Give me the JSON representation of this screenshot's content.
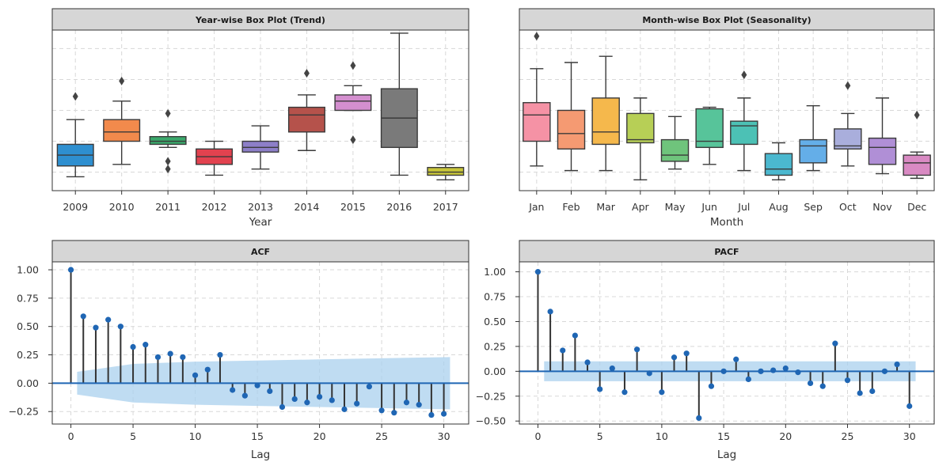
{
  "chart_data": [
    {
      "id": "year_box",
      "type": "box",
      "title": "Year-wise Box Plot (Trend)",
      "xlabel": "Year",
      "ylabel": "",
      "grid": true,
      "y_tick_labels_visible": false,
      "ylim": [
        -2,
        102
      ],
      "categories": [
        "2009",
        "2010",
        "2011",
        "2012",
        "2013",
        "2014",
        "2015",
        "2016",
        "2017"
      ],
      "colors": [
        "#2e8fd0",
        "#f28a4c",
        "#3aa86b",
        "#e2424f",
        "#8d7fc8",
        "#b5524b",
        "#d48fcf",
        "#7a7a7a",
        "#c8c63a"
      ],
      "boxes": [
        {
          "whislo": 7,
          "q1": 14,
          "med": 21,
          "q3": 28,
          "whishi": 44,
          "fliers": [
            59
          ]
        },
        {
          "whislo": 15,
          "q1": 30,
          "med": 36,
          "q3": 44,
          "whishi": 56,
          "fliers": [
            69
          ]
        },
        {
          "whislo": 26,
          "q1": 28,
          "med": 30,
          "q3": 33,
          "whishi": 36,
          "fliers": [
            48,
            17,
            12
          ]
        },
        {
          "whislo": 8,
          "q1": 15,
          "med": 20,
          "q3": 25,
          "whishi": 30,
          "fliers": []
        },
        {
          "whislo": 12,
          "q1": 23,
          "med": 26,
          "q3": 30,
          "whishi": 40,
          "fliers": []
        },
        {
          "whislo": 24,
          "q1": 36,
          "med": 47,
          "q3": 52,
          "whishi": 60,
          "fliers": [
            74
          ]
        },
        {
          "whislo": 50,
          "q1": 50,
          "med": 56,
          "q3": 60,
          "whishi": 66,
          "fliers": [
            79,
            31
          ]
        },
        {
          "whislo": 8,
          "q1": 26,
          "med": 45,
          "q3": 64,
          "whishi": 100,
          "fliers": []
        },
        {
          "whislo": 5,
          "q1": 8,
          "med": 10,
          "q3": 13,
          "whishi": 15,
          "fliers": []
        }
      ]
    },
    {
      "id": "month_box",
      "type": "box",
      "title": "Month-wise Box Plot (Seasonality)",
      "xlabel": "Month",
      "ylabel": "",
      "grid": true,
      "y_tick_labels_visible": false,
      "ylim": [
        -2,
        102
      ],
      "categories": [
        "Jan",
        "Feb",
        "Mar",
        "Apr",
        "May",
        "Jun",
        "Jul",
        "Aug",
        "Sep",
        "Oct",
        "Nov",
        "Dec"
      ],
      "colors": [
        "#f592a5",
        "#f59a72",
        "#f5b84c",
        "#b7cf56",
        "#6fc47c",
        "#57c49a",
        "#4cc1b5",
        "#4bb8cf",
        "#64aee8",
        "#a9aedc",
        "#b08fd6",
        "#d98ac3"
      ],
      "boxes": [
        {
          "whislo": 14,
          "q1": 30,
          "med": 47,
          "q3": 55,
          "whishi": 77,
          "fliers": [
            98
          ]
        },
        {
          "whislo": 11,
          "q1": 25,
          "med": 35,
          "q3": 50,
          "whishi": 81,
          "fliers": []
        },
        {
          "whislo": 11,
          "q1": 28,
          "med": 36,
          "q3": 58,
          "whishi": 85,
          "fliers": []
        },
        {
          "whislo": 5,
          "q1": 29,
          "med": 31,
          "q3": 48,
          "whishi": 58,
          "fliers": []
        },
        {
          "whislo": 12,
          "q1": 17,
          "med": 21,
          "q3": 31,
          "whishi": 46,
          "fliers": []
        },
        {
          "whislo": 15,
          "q1": 26,
          "med": 30,
          "q3": 51,
          "whishi": 52,
          "fliers": []
        },
        {
          "whislo": 11,
          "q1": 28,
          "med": 40,
          "q3": 43,
          "whishi": 58,
          "fliers": [
            73
          ]
        },
        {
          "whislo": 5,
          "q1": 8,
          "med": 12,
          "q3": 22,
          "whishi": 29,
          "fliers": []
        },
        {
          "whislo": 11,
          "q1": 16,
          "med": 27,
          "q3": 31,
          "whishi": 53,
          "fliers": []
        },
        {
          "whislo": 14,
          "q1": 25,
          "med": 27,
          "q3": 38,
          "whishi": 48,
          "fliers": [
            66
          ]
        },
        {
          "whislo": 9,
          "q1": 15,
          "med": 26,
          "q3": 32,
          "whishi": 58,
          "fliers": []
        },
        {
          "whislo": 6,
          "q1": 8,
          "med": 16,
          "q3": 21,
          "whishi": 23,
          "fliers": [
            47
          ]
        }
      ]
    },
    {
      "id": "acf",
      "type": "stem",
      "title": "ACF",
      "xlabel": "Lag",
      "ylabel": "",
      "grid": true,
      "xlim": [
        -1.5,
        32
      ],
      "ylim": [
        -0.36,
        1.07
      ],
      "xticks": [
        0,
        5,
        10,
        15,
        20,
        25,
        30
      ],
      "xtick_labels": [
        "0",
        "5",
        "10",
        "15",
        "20",
        "25",
        "30"
      ],
      "yticks": [
        -0.25,
        0,
        0.25,
        0.5,
        0.75,
        1.0
      ],
      "ytick_labels": [
        "−0.25",
        "0.00",
        "0.25",
        "0.50",
        "0.75",
        "1.00"
      ],
      "x": [
        0,
        1,
        2,
        3,
        4,
        5,
        6,
        7,
        8,
        9,
        10,
        11,
        12,
        13,
        14,
        15,
        16,
        17,
        18,
        19,
        20,
        21,
        22,
        23,
        24,
        25,
        26,
        27,
        28,
        29,
        30
      ],
      "values": [
        1.0,
        0.59,
        0.49,
        0.56,
        0.5,
        0.32,
        0.34,
        0.23,
        0.26,
        0.23,
        0.07,
        0.12,
        0.25,
        -0.06,
        -0.11,
        -0.02,
        -0.07,
        -0.21,
        -0.14,
        -0.17,
        -0.12,
        -0.15,
        -0.23,
        -0.18,
        -0.03,
        -0.24,
        -0.26,
        -0.17,
        -0.19,
        -0.28,
        -0.27
      ],
      "confidence_band": {
        "x": [
          0.5,
          5,
          10,
          15,
          20,
          25,
          30.5
        ],
        "upper": [
          0.1,
          0.17,
          0.19,
          0.2,
          0.21,
          0.22,
          0.23
        ],
        "lower": [
          -0.1,
          -0.17,
          -0.19,
          -0.2,
          -0.21,
          -0.22,
          -0.23
        ]
      },
      "colors": {
        "stem": "#333333",
        "marker": "#1f66b4",
        "baseline": "#1f66b4",
        "band": "#aad0ee"
      }
    },
    {
      "id": "pacf",
      "type": "stem",
      "title": "PACF",
      "xlabel": "Lag",
      "ylabel": "",
      "grid": true,
      "xlim": [
        -1.5,
        32
      ],
      "ylim": [
        -0.53,
        1.1
      ],
      "xticks": [
        0,
        5,
        10,
        15,
        20,
        25,
        30
      ],
      "xtick_labels": [
        "0",
        "5",
        "10",
        "15",
        "20",
        "25",
        "30"
      ],
      "yticks": [
        -0.5,
        -0.25,
        0,
        0.25,
        0.5,
        0.75,
        1.0
      ],
      "ytick_labels": [
        "−0.50",
        "−0.25",
        "0.00",
        "0.25",
        "0.50",
        "0.75",
        "1.00"
      ],
      "x": [
        0,
        1,
        2,
        3,
        4,
        5,
        6,
        7,
        8,
        9,
        10,
        11,
        12,
        13,
        14,
        15,
        16,
        17,
        18,
        19,
        20,
        21,
        22,
        23,
        24,
        25,
        26,
        27,
        28,
        29,
        30
      ],
      "values": [
        1.0,
        0.6,
        0.21,
        0.36,
        0.09,
        -0.18,
        0.03,
        -0.21,
        0.22,
        -0.02,
        -0.21,
        0.14,
        0.18,
        -0.47,
        -0.15,
        0.0,
        0.12,
        -0.08,
        0.0,
        0.01,
        0.03,
        -0.01,
        -0.12,
        -0.15,
        0.28,
        -0.09,
        -0.22,
        -0.2,
        0.0,
        0.07,
        -0.35
      ],
      "confidence_band": {
        "x": [
          0.5,
          30.5
        ],
        "upper": [
          0.1,
          0.1
        ],
        "lower": [
          -0.1,
          -0.1
        ]
      },
      "colors": {
        "stem": "#333333",
        "marker": "#1f66b4",
        "baseline": "#1f66b4",
        "band": "#aad0ee"
      }
    }
  ]
}
